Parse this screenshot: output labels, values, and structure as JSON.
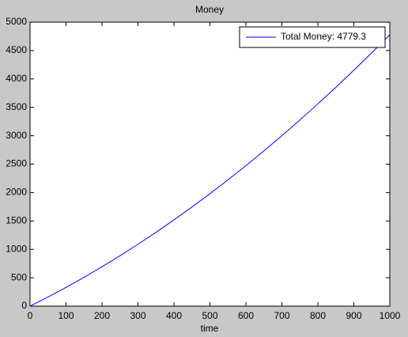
{
  "chart_data": {
    "type": "line",
    "title": "Money",
    "xlabel": "time",
    "x": [
      0,
      50,
      100,
      150,
      200,
      250,
      300,
      350,
      400,
      450,
      500,
      550,
      600,
      650,
      700,
      750,
      800,
      850,
      900,
      950,
      1000
    ],
    "series": [
      {
        "name": "Total Money: 4779.3",
        "color": "#0000ff",
        "values": [
          0,
          161.2,
          330.5,
          508.1,
          693.7,
          887.7,
          1089.7,
          1300.1,
          1518.5,
          1745.2,
          1980,
          2223.1,
          2474.3,
          2733.8,
          3001.3,
          3277.2,
          3561.1,
          3853.4,
          4153.7,
          4462.3,
          4779.3
        ]
      }
    ],
    "xlim": [
      0,
      1000
    ],
    "xticks": [
      0,
      100,
      200,
      300,
      400,
      500,
      600,
      700,
      800,
      900,
      1000
    ],
    "ylim": [
      0,
      5000
    ],
    "yticks": [
      0,
      500,
      1000,
      1500,
      2000,
      2500,
      3000,
      3500,
      4000,
      4500,
      5000
    ],
    "grid": false,
    "legend": "top-right"
  }
}
